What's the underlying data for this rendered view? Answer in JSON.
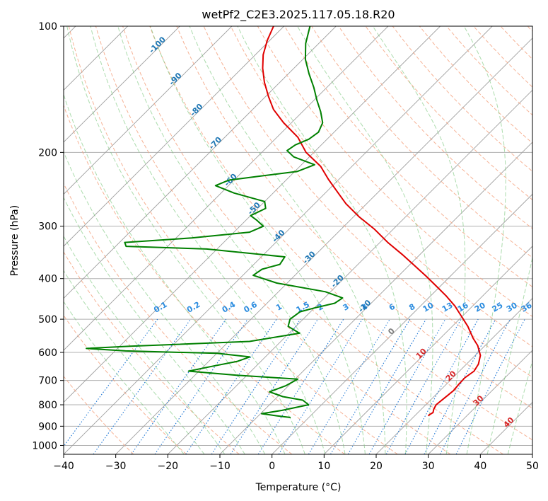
{
  "chart_data": {
    "type": "line",
    "title": "wetPf2_C2E3.2025.117.05.18.R20",
    "xlabel": "Temperature (°C)",
    "ylabel": "Pressure (hPa)",
    "xlim": [
      -40,
      50
    ],
    "ylim": [
      1050,
      100
    ],
    "y_scale": "log",
    "grid": true,
    "x_ticks": [
      -40,
      -30,
      -20,
      -10,
      0,
      10,
      20,
      30,
      40,
      50
    ],
    "y_ticks": [
      1000,
      900,
      800,
      700,
      600,
      500,
      400,
      300,
      200,
      100
    ],
    "skew_factor": 35,
    "series": [
      {
        "color": "#e00000",
        "points": [
          [
            22.6,
            850
          ],
          [
            22.6,
            845
          ],
          [
            22.9,
            835
          ],
          [
            22.4,
            820
          ],
          [
            22.0,
            800
          ],
          [
            22.3,
            770
          ],
          [
            22.6,
            740
          ],
          [
            22.4,
            715
          ],
          [
            22.3,
            690
          ],
          [
            22.8,
            665
          ],
          [
            22.3,
            640
          ],
          [
            21.0,
            610
          ],
          [
            18.6,
            578
          ],
          [
            16.3,
            555
          ],
          [
            13.0,
            520
          ],
          [
            9.6,
            490
          ],
          [
            6.6,
            465
          ],
          [
            3.0,
            440
          ],
          [
            -0.6,
            418
          ],
          [
            -4.6,
            395
          ],
          [
            -9.0,
            372
          ],
          [
            -13.5,
            350
          ],
          [
            -18.5,
            328
          ],
          [
            -23.6,
            305
          ],
          [
            -28.9,
            285
          ],
          [
            -34.0,
            265
          ],
          [
            -38.0,
            248
          ],
          [
            -42.0,
            232
          ],
          [
            -46.0,
            216
          ],
          [
            -51.5,
            200
          ],
          [
            -56.0,
            184
          ],
          [
            -61.5,
            170
          ],
          [
            -66.0,
            158
          ],
          [
            -69.5,
            147
          ],
          [
            -73.0,
            136
          ],
          [
            -76.0,
            126
          ],
          [
            -78.5,
            117
          ],
          [
            -80.5,
            108
          ],
          [
            -82.0,
            100
          ]
        ]
      },
      {
        "color": "#008000",
        "points": [
          [
            -3.5,
            858
          ],
          [
            -6.5,
            850
          ],
          [
            -9.8,
            840
          ],
          [
            -6.5,
            825
          ],
          [
            -2.5,
            800
          ],
          [
            -4.5,
            780
          ],
          [
            -9.0,
            765
          ],
          [
            -12.5,
            745
          ],
          [
            -10.5,
            720
          ],
          [
            -9.5,
            695
          ],
          [
            -22.0,
            680
          ],
          [
            -32.0,
            665
          ],
          [
            -28.5,
            648
          ],
          [
            -24.5,
            630
          ],
          [
            -23.0,
            615
          ],
          [
            -30.0,
            603
          ],
          [
            -48.0,
            595
          ],
          [
            -56.0,
            587
          ],
          [
            -48.0,
            580
          ],
          [
            -26.0,
            565
          ],
          [
            -18.0,
            540
          ],
          [
            -21.5,
            520
          ],
          [
            -22.5,
            500
          ],
          [
            -22.0,
            480
          ],
          [
            -20.0,
            470
          ],
          [
            -17.0,
            458
          ],
          [
            -16.5,
            445
          ],
          [
            -21.0,
            430
          ],
          [
            -32.0,
            410
          ],
          [
            -38.0,
            393
          ],
          [
            -37.5,
            380
          ],
          [
            -35.0,
            370
          ],
          [
            -35.5,
            355
          ],
          [
            -52.0,
            340
          ],
          [
            -68.0,
            335
          ],
          [
            -69.0,
            328
          ],
          [
            -57.0,
            320
          ],
          [
            -47.0,
            310
          ],
          [
            -45.5,
            300
          ],
          [
            -48.0,
            290
          ],
          [
            -50.0,
            283
          ],
          [
            -48.5,
            272
          ],
          [
            -50.0,
            262
          ],
          [
            -57.5,
            250
          ],
          [
            -62.5,
            240
          ],
          [
            -61.0,
            233
          ],
          [
            -56.0,
            228
          ],
          [
            -49.5,
            222
          ],
          [
            -47.5,
            214
          ],
          [
            -53.0,
            205
          ],
          [
            -55.5,
            198
          ],
          [
            -55.0,
            192
          ],
          [
            -53.5,
            186
          ],
          [
            -53.0,
            179
          ],
          [
            -54.0,
            170
          ],
          [
            -56.5,
            160
          ],
          [
            -59.5,
            150
          ],
          [
            -62.5,
            140
          ],
          [
            -66.0,
            130
          ],
          [
            -69.5,
            120
          ],
          [
            -72.5,
            110
          ],
          [
            -75.0,
            100
          ]
        ]
      }
    ],
    "mixing_ratio_labels": [
      "0.1",
      "0.2",
      "0.4",
      "0.6",
      "1",
      "1.5",
      "2",
      "3",
      "4",
      "6",
      "8",
      "10",
      "13",
      "16",
      "20",
      "25",
      "30",
      "36"
    ],
    "moist_adiabat_labels": [
      "-100",
      "-90",
      "-80",
      "-70",
      "-60",
      "-50",
      "-40",
      "-30",
      "-20",
      "-10",
      "0",
      "10",
      "20",
      "30",
      "40"
    ]
  },
  "colors": {
    "temperature": "#e00000",
    "dewpoint": "#008000",
    "isotherm": "#808080",
    "dry_adiabat": "#f4a582",
    "moist_adiabat": "#74c476",
    "mixing_ratio": "#1f77d4",
    "label_blue": "#1f77b4",
    "label_red": "#d62728",
    "label_grey": "#7f7f7f",
    "label_mixing": "#2b8cdf"
  }
}
